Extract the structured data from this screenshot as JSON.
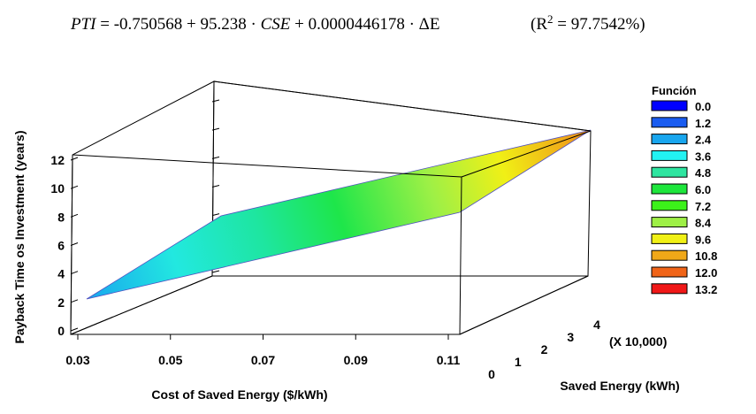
{
  "equation": {
    "lhs": "PTI",
    "eq_sign": " = ",
    "c0": "-0.750568",
    "plus1": " + ",
    "c1": "95.238",
    "dot1": " · ",
    "var1": "CSE",
    "plus2": " + ",
    "c2": "0.0000446178",
    "dot2": " · ",
    "var2": "ΔE",
    "r2_open": "(R",
    "r2_sup": "2",
    "r2_rest": " = 97.7542%)"
  },
  "chart_data": {
    "type": "surface",
    "xlabel": "Cost of Saved Energy ($/kWh)",
    "ylabel": "Saved Energy (kWh)",
    "zlabel": "Payback Time os Investment (years)",
    "x_ticks": [
      "0.03",
      "0.05",
      "0.07",
      "0.09",
      "0.11"
    ],
    "y_ticks": [
      "0",
      "1",
      "2",
      "3",
      "4"
    ],
    "y_multiplier": "(X 10,000)",
    "z_ticks": [
      "0",
      "2",
      "4",
      "6",
      "8",
      "10",
      "12"
    ],
    "xlim": [
      0.03,
      0.11
    ],
    "ylim": [
      0,
      40000
    ],
    "zlim": [
      0,
      12
    ],
    "model": {
      "intercept": -0.750568,
      "coef_x": 95.238,
      "coef_y": 4.46178e-05
    },
    "legend": {
      "title": "Función",
      "placement": "right",
      "items": [
        {
          "label": "0.0",
          "color": "#0000ff"
        },
        {
          "label": "1.2",
          "color": "#1a5cf0"
        },
        {
          "label": "2.4",
          "color": "#19a6ee"
        },
        {
          "label": "3.6",
          "color": "#22f2f2"
        },
        {
          "label": "4.8",
          "color": "#2ee5a0"
        },
        {
          "label": "6.0",
          "color": "#1ee63c"
        },
        {
          "label": "7.2",
          "color": "#3cf21a"
        },
        {
          "label": "8.4",
          "color": "#9ef046"
        },
        {
          "label": "9.6",
          "color": "#f0f016"
        },
        {
          "label": "10.8",
          "color": "#f0a818"
        },
        {
          "label": "12.0",
          "color": "#f06418"
        },
        {
          "label": "13.2",
          "color": "#f01818"
        }
      ]
    }
  }
}
